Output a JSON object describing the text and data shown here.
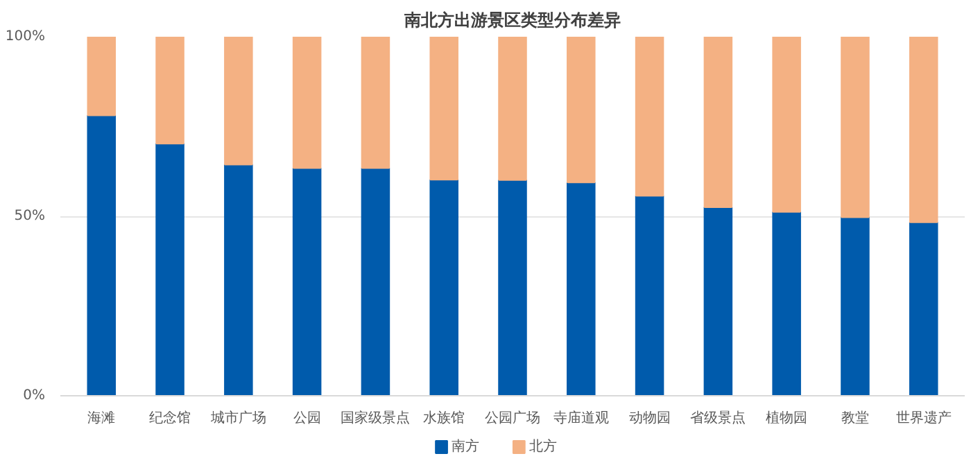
{
  "chart_data": {
    "type": "bar",
    "title": "南北方出游景区类型分布差异",
    "stacked": true,
    "categories": [
      "海滩",
      "纪念馆",
      "城市广场",
      "公园",
      "国家级景点",
      "水族馆",
      "公园广场",
      "寺庙道观",
      "动物园",
      "省级景点",
      "植物园",
      "教堂",
      "世界遗产"
    ],
    "series": [
      {
        "name": "南方",
        "color": "#005bac",
        "values": [
          78.1,
          70.2,
          64.4,
          63.4,
          63.4,
          60.2,
          60.1,
          59.4,
          55.7,
          52.5,
          51.2,
          49.7,
          48.3
        ]
      },
      {
        "name": "北方",
        "color": "#f4b183",
        "values": [
          21.9,
          29.8,
          35.6,
          36.6,
          36.6,
          39.8,
          39.9,
          40.6,
          44.3,
          47.5,
          48.8,
          50.3,
          51.7
        ]
      }
    ],
    "ylim": [
      0,
      100
    ],
    "yticks": [
      {
        "value": 0,
        "label": "0%"
      },
      {
        "value": 50,
        "label": "50%"
      },
      {
        "value": 100,
        "label": "100%"
      }
    ],
    "grid": "y",
    "legend": "bottom"
  }
}
